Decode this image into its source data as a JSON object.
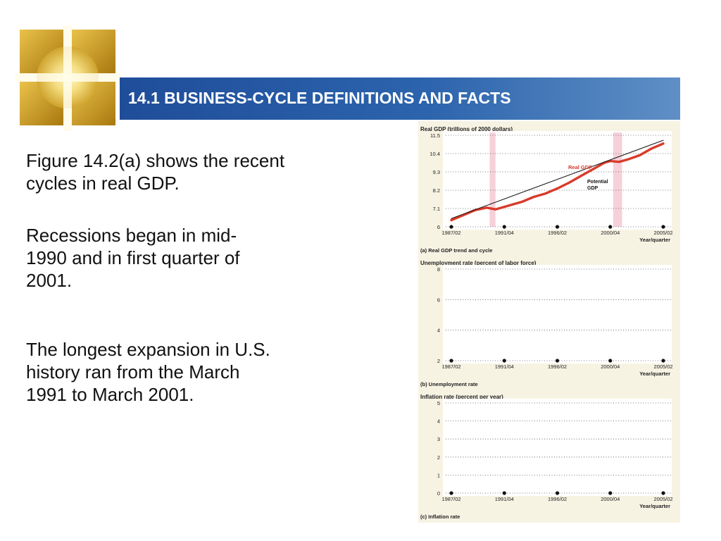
{
  "slide": {
    "title": "14.1 BUSINESS-CYCLE DEFINITIONS AND FACTS",
    "paragraphs": [
      "Figure 14.2(a) shows the recent cycles in real GDP.",
      "Recessions began in mid-1990 and in first quarter of 2001.",
      "The longest expansion in U.S. history ran from the March 1991 to March 2001."
    ],
    "logo_icon": "golden-window-icon"
  },
  "colors": {
    "banner": "#2c64ad",
    "panel_bg": "#f7f3e3",
    "real_gdp": "#d93a2a",
    "potential_gdp": "#111111",
    "recession_band": "#f4c6cf"
  },
  "chart_data": [
    {
      "type": "line",
      "header": "Real GDP (trillions of 2000 dollars)",
      "caption": "(a) Real GDP trend and cycle",
      "xlabel": "Year/quarter",
      "x_ticks": [
        "1987/02",
        "1991/04",
        "1996/02",
        "2000/04",
        "2005/02"
      ],
      "y_ticks": [
        6.0,
        7.1,
        8.2,
        9.3,
        10.4,
        11.5
      ],
      "ylim": [
        6.0,
        11.5
      ],
      "grid": "dotted horizontal",
      "recessions": [
        [
          "1990/03",
          "1991/01"
        ],
        [
          "2001/01",
          "2001/04"
        ]
      ],
      "series": [
        {
          "name": "Real GDP",
          "color": "#d93a2a",
          "x": [
            "1987/02",
            "1988/02",
            "1989/02",
            "1990/02",
            "1991/01",
            "1992/02",
            "1993/02",
            "1994/02",
            "1995/02",
            "1996/02",
            "1997/02",
            "1998/02",
            "1999/02",
            "2000/02",
            "2000/04",
            "2001/03",
            "2002/02",
            "2003/02",
            "2004/02",
            "2005/02"
          ],
          "values": [
            6.4,
            6.7,
            7.0,
            7.15,
            7.05,
            7.3,
            7.5,
            7.8,
            8.0,
            8.3,
            8.65,
            9.05,
            9.45,
            9.85,
            9.95,
            9.9,
            10.05,
            10.3,
            10.7,
            11.0
          ]
        },
        {
          "name": "Potential GDP",
          "color": "#111111",
          "x": [
            "1987/02",
            "2005/02"
          ],
          "values": [
            6.5,
            11.2
          ]
        }
      ]
    },
    {
      "type": "line",
      "header": "Unemployment rate (percent of labor force)",
      "caption": "(b) Unemployment rate",
      "xlabel": "Year/quarter",
      "x_ticks": [
        "1987/02",
        "1991/04",
        "1996/02",
        "2000/04",
        "2005/02"
      ],
      "y_ticks": [
        2,
        4,
        6,
        8
      ],
      "ylim": [
        2,
        8
      ],
      "grid": "dotted horizontal",
      "series": []
    },
    {
      "type": "line",
      "header": "Inflation rate (percent per year)",
      "caption": "(c) Inflation rate",
      "xlabel": "Year/quarter",
      "x_ticks": [
        "1987/02",
        "1991/04",
        "1996/02",
        "2000/04",
        "2005/02"
      ],
      "y_ticks": [
        0,
        1,
        2,
        3,
        4,
        5
      ],
      "ylim": [
        0,
        5
      ],
      "grid": "dotted horizontal",
      "series": []
    }
  ]
}
